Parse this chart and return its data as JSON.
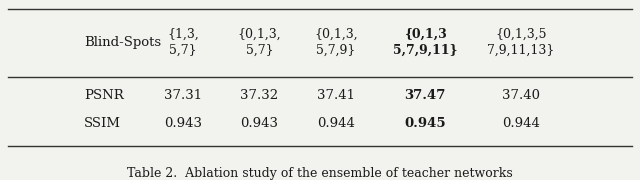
{
  "title": "Table 2.  Ablation study of the ensemble of teacher networks",
  "col_headers": [
    "{1,3,\n5,7}",
    "{0,1,3,\n5,7}",
    "{0,1,3,\n5,7,9}",
    "{0,1,3\n5,7,9,11}",
    "{0,1,3,5\n7,9,11,13}"
  ],
  "row_labels": [
    "Blind-Spots",
    "PSNR",
    "SSIM"
  ],
  "psnr_values": [
    "37.31",
    "37.32",
    "37.41",
    "37.47",
    "37.40"
  ],
  "ssim_values": [
    "0.943",
    "0.943",
    "0.944",
    "0.945",
    "0.944"
  ],
  "bold_col": 3,
  "bg_color": "#f2f2ee",
  "text_color": "#1a1a1a",
  "line_color": "#333333",
  "font_size": 9.5,
  "caption_font_size": 9.0
}
